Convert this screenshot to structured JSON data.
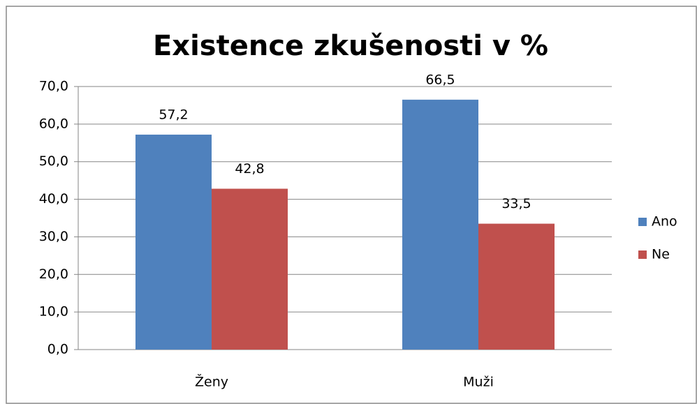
{
  "chart_data": {
    "type": "bar",
    "title": "Existence zkušenosti v %",
    "categories": [
      "Ženy",
      "Muži"
    ],
    "series": [
      {
        "name": "Ano",
        "color": "#4f81bd",
        "values": [
          57.2,
          66.5
        ],
        "value_labels": [
          "57,2",
          "66,5"
        ]
      },
      {
        "name": "Ne",
        "color": "#c0504d",
        "values": [
          42.8,
          33.5
        ],
        "value_labels": [
          "42,8",
          "33,5"
        ]
      }
    ],
    "ylim": [
      0,
      70
    ],
    "yticks": [
      {
        "value": 0,
        "label": "0,0"
      },
      {
        "value": 10,
        "label": "10,0"
      },
      {
        "value": 20,
        "label": "20,0"
      },
      {
        "value": 30,
        "label": "30,0"
      },
      {
        "value": 40,
        "label": "40,0"
      },
      {
        "value": 50,
        "label": "50,0"
      },
      {
        "value": 60,
        "label": "60,0"
      },
      {
        "value": 70,
        "label": "70,0"
      }
    ],
    "grid": true,
    "legend": "right"
  }
}
